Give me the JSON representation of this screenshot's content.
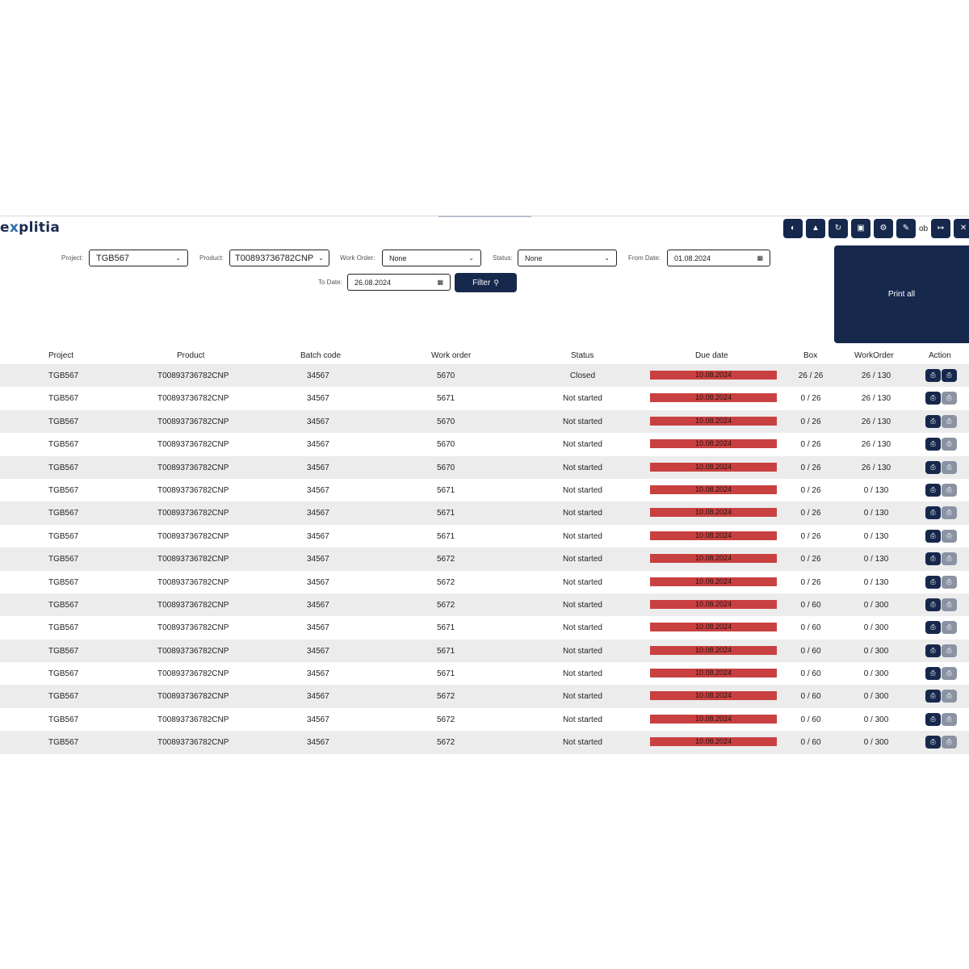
{
  "app": {
    "logo_prefix": "e",
    "logo_x": "x",
    "logo_rest": "plitia"
  },
  "toolbar": {
    "user_text": "ob",
    "icons": [
      "globe-icon",
      "user-icon",
      "refresh-icon",
      "save-icon",
      "gear-icon",
      "edit-icon",
      "logout-icon",
      "close-icon"
    ]
  },
  "filters": {
    "project_label": "Project:",
    "project_value": "TGB567",
    "product_label": "Product:",
    "product_value": "T00893736782CNP",
    "work_order_label": "Work Order:",
    "work_order_value": "None",
    "status_label": "Status:",
    "status_value": "None",
    "from_date_label": "From Date:",
    "from_date_value": "01.08.2024",
    "to_date_label": "To Date:",
    "to_date_value": "26.08.2024",
    "filter_button": "Filter"
  },
  "print_all_label": "Print all",
  "table": {
    "headers": [
      "Project",
      "Product",
      "Batch code",
      "Work order",
      "Status",
      "Due date",
      "Box",
      "WorkOrder",
      "Action"
    ],
    "rows": [
      {
        "project": "TGB567",
        "product": "T00893736782CNP",
        "batch": "34567",
        "work_order": "5670",
        "status": "Closed",
        "due": "10.08.2024",
        "box": "26 / 26",
        "workorder": "26 / 130",
        "second_action": "dark"
      },
      {
        "project": "TGB567",
        "product": "T00893736782CNP",
        "batch": "34567",
        "work_order": "5671",
        "status": "Not started",
        "due": "10.08.2024",
        "box": "0 / 26",
        "workorder": "26 / 130",
        "second_action": "grey"
      },
      {
        "project": "TGB567",
        "product": "T00893736782CNP",
        "batch": "34567",
        "work_order": "5670",
        "status": "Not started",
        "due": "10.08.2024",
        "box": "0 / 26",
        "workorder": "26 / 130",
        "second_action": "grey"
      },
      {
        "project": "TGB567",
        "product": "T00893736782CNP",
        "batch": "34567",
        "work_order": "5670",
        "status": "Not started",
        "due": "10.08.2024",
        "box": "0 / 26",
        "workorder": "26 / 130",
        "second_action": "grey"
      },
      {
        "project": "TGB567",
        "product": "T00893736782CNP",
        "batch": "34567",
        "work_order": "5670",
        "status": "Not started",
        "due": "10.08.2024",
        "box": "0 / 26",
        "workorder": "26 / 130",
        "second_action": "grey"
      },
      {
        "project": "TGB567",
        "product": "T00893736782CNP",
        "batch": "34567",
        "work_order": "5671",
        "status": "Not started",
        "due": "10.08.2024",
        "box": "0 / 26",
        "workorder": "0 / 130",
        "second_action": "grey"
      },
      {
        "project": "TGB567",
        "product": "T00893736782CNP",
        "batch": "34567",
        "work_order": "5671",
        "status": "Not started",
        "due": "10.08.2024",
        "box": "0 / 26",
        "workorder": "0 / 130",
        "second_action": "grey"
      },
      {
        "project": "TGB567",
        "product": "T00893736782CNP",
        "batch": "34567",
        "work_order": "5671",
        "status": "Not started",
        "due": "10.08.2024",
        "box": "0 / 26",
        "workorder": "0 / 130",
        "second_action": "grey"
      },
      {
        "project": "TGB567",
        "product": "T00893736782CNP",
        "batch": "34567",
        "work_order": "5672",
        "status": "Not started",
        "due": "10.08.2024",
        "box": "0 / 26",
        "workorder": "0 / 130",
        "second_action": "grey"
      },
      {
        "project": "TGB567",
        "product": "T00893736782CNP",
        "batch": "34567",
        "work_order": "5672",
        "status": "Not started",
        "due": "10.08.2024",
        "box": "0 / 26",
        "workorder": "0 / 130",
        "second_action": "grey"
      },
      {
        "project": "TGB567",
        "product": "T00893736782CNP",
        "batch": "34567",
        "work_order": "5672",
        "status": "Not started",
        "due": "10.08.2024",
        "box": "0 / 60",
        "workorder": "0 / 300",
        "second_action": "grey"
      },
      {
        "project": "TGB567",
        "product": "T00893736782CNP",
        "batch": "34567",
        "work_order": "5671",
        "status": "Not started",
        "due": "10.08.2024",
        "box": "0 / 60",
        "workorder": "0 / 300",
        "second_action": "grey"
      },
      {
        "project": "TGB567",
        "product": "T00893736782CNP",
        "batch": "34567",
        "work_order": "5671",
        "status": "Not started",
        "due": "10.08.2024",
        "box": "0 / 60",
        "workorder": "0 / 300",
        "second_action": "grey"
      },
      {
        "project": "TGB567",
        "product": "T00893736782CNP",
        "batch": "34567",
        "work_order": "5671",
        "status": "Not started",
        "due": "10.08.2024",
        "box": "0 / 60",
        "workorder": "0 / 300",
        "second_action": "grey"
      },
      {
        "project": "TGB567",
        "product": "T00893736782CNP",
        "batch": "34567",
        "work_order": "5672",
        "status": "Not started",
        "due": "10.08.2024",
        "box": "0 / 60",
        "workorder": "0 / 300",
        "second_action": "grey"
      },
      {
        "project": "TGB567",
        "product": "T00893736782CNP",
        "batch": "34567",
        "work_order": "5672",
        "status": "Not started",
        "due": "10.08.2024",
        "box": "0 / 60",
        "workorder": "0 / 300",
        "second_action": "grey"
      },
      {
        "project": "TGB567",
        "product": "T00893736782CNP",
        "batch": "34567",
        "work_order": "5672",
        "status": "Not started",
        "due": "10.08.2024",
        "box": "0 / 60",
        "workorder": "0 / 300",
        "second_action": "grey"
      }
    ]
  },
  "colors": {
    "primary": "#17284d",
    "overdue": "#c94040",
    "stripe": "#ececec",
    "secondary_action": "#8a93a3"
  }
}
